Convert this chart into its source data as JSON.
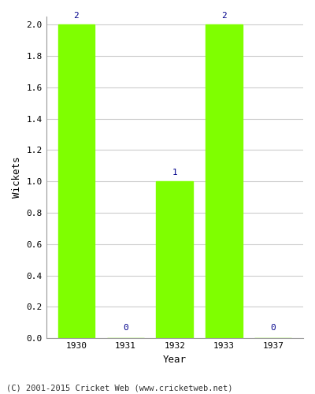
{
  "categories": [
    "1930",
    "1931",
    "1932",
    "1933",
    "1937"
  ],
  "values": [
    2,
    0,
    1,
    2,
    0
  ],
  "bar_color": "#7FFF00",
  "bar_edgecolor": "#7FFF00",
  "title": "",
  "xlabel": "Year",
  "ylabel": "Wickets",
  "ylim": [
    0.0,
    2.0
  ],
  "yticks": [
    0.0,
    0.2,
    0.4,
    0.6,
    0.8,
    1.0,
    1.2,
    1.4,
    1.6,
    1.8,
    2.0
  ],
  "label_color": "#00008B",
  "label_fontsize": 8,
  "axis_label_fontsize": 9,
  "tick_fontsize": 8,
  "footer": "(C) 2001-2015 Cricket Web (www.cricketweb.net)",
  "footer_fontsize": 7.5,
  "background_color": "#ffffff",
  "grid_color": "#cccccc",
  "bar_width": 0.75
}
